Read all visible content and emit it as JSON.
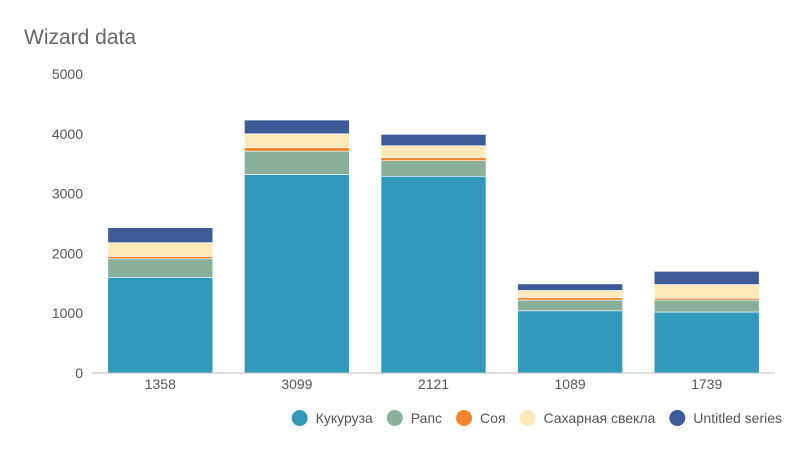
{
  "chart_data": {
    "type": "bar",
    "stacked": true,
    "title": "Wizard data",
    "xlabel": "",
    "ylabel": "",
    "categories": [
      "1358",
      "3099",
      "2121",
      "1089",
      "1739"
    ],
    "ylim": [
      0,
      5000
    ],
    "yticks": [
      0,
      1000,
      2000,
      3000,
      4000,
      5000
    ],
    "grid": false,
    "legend_position": "bottom-right",
    "series": [
      {
        "name": "Кукуруза",
        "color": "#3399bb",
        "values": [
          1600,
          3320,
          3290,
          1040,
          1020
        ]
      },
      {
        "name": "Рапс",
        "color": "#88b09a",
        "values": [
          310,
          390,
          260,
          180,
          200
        ]
      },
      {
        "name": "Соя",
        "color": "#f0852d",
        "values": [
          40,
          60,
          50,
          40,
          30
        ]
      },
      {
        "name": "Сахарная свекла",
        "color": "#fde9bb",
        "values": [
          230,
          230,
          200,
          120,
          230
        ]
      },
      {
        "name": "Untitled series",
        "color": "#3d5b96",
        "values": [
          250,
          230,
          190,
          110,
          220
        ]
      }
    ]
  }
}
